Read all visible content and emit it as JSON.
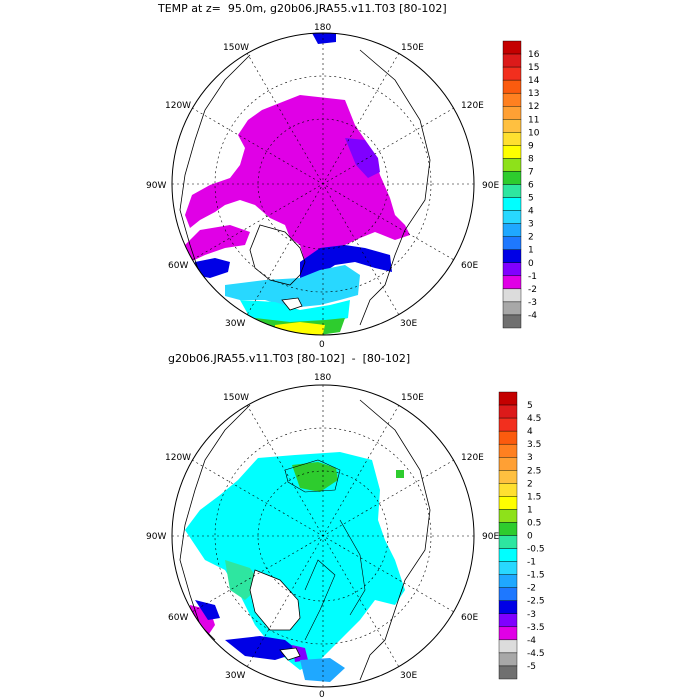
{
  "panels": [
    {
      "title": "TEMP at z=  95.0m, g20b06.JRA55.v11.T03 [80-102]",
      "colorbar": {
        "levels": [
          "16",
          "15",
          "14",
          "13",
          "12",
          "11",
          "10",
          "9",
          "8",
          "7",
          "6",
          "5",
          "4",
          "3",
          "2",
          "1",
          "0",
          "-1",
          "-2",
          "-3",
          "-4"
        ],
        "colors": [
          "#c40000",
          "#dc1a1a",
          "#f22f1e",
          "#fb5b0e",
          "#ff8020",
          "#ffa034",
          "#ffc040",
          "#ffe030",
          "#ffff00",
          "#8ee11a",
          "#2ecc2e",
          "#2ee6a0",
          "#00ffff",
          "#28d8ff",
          "#1fa8ff",
          "#1e78ff",
          "#0000e6",
          "#8000ff",
          "#e000e6",
          "#dcdcdc",
          "#a8a8a8",
          "#707070"
        ]
      }
    },
    {
      "title": "g20b06.JRA55.v11.T03 [80-102]  -  [80-102]",
      "colorbar": {
        "levels": [
          "5",
          "4.5",
          "4",
          "3.5",
          "3",
          "2.5",
          "2",
          "1.5",
          "1",
          "0.5",
          "0",
          "-0.5",
          "-1",
          "-1.5",
          "-2",
          "-2.5",
          "-3",
          "-3.5",
          "-4",
          "-4.5",
          "-5"
        ],
        "colors": [
          "#c40000",
          "#dc1a1a",
          "#f22f1e",
          "#fb5b0e",
          "#ff8020",
          "#ffa034",
          "#ffc040",
          "#ffe030",
          "#ffff00",
          "#8ee11a",
          "#2ecc2e",
          "#2ee6a0",
          "#00ffff",
          "#28d8ff",
          "#1fa8ff",
          "#1e78ff",
          "#0000e6",
          "#8000ff",
          "#e000e6",
          "#dcdcdc",
          "#a8a8a8",
          "#707070"
        ]
      }
    }
  ],
  "lon_labels": {
    "top": "180",
    "bottom": "0",
    "left": "90W",
    "right": "90E",
    "upper_left": "150W",
    "upper_right": "150E",
    "mid_upper_left": "120W",
    "mid_upper_right": "120E",
    "mid_lower_left": "60W",
    "mid_lower_right": "60E",
    "lower_left": "30W",
    "lower_right": "30E"
  }
}
